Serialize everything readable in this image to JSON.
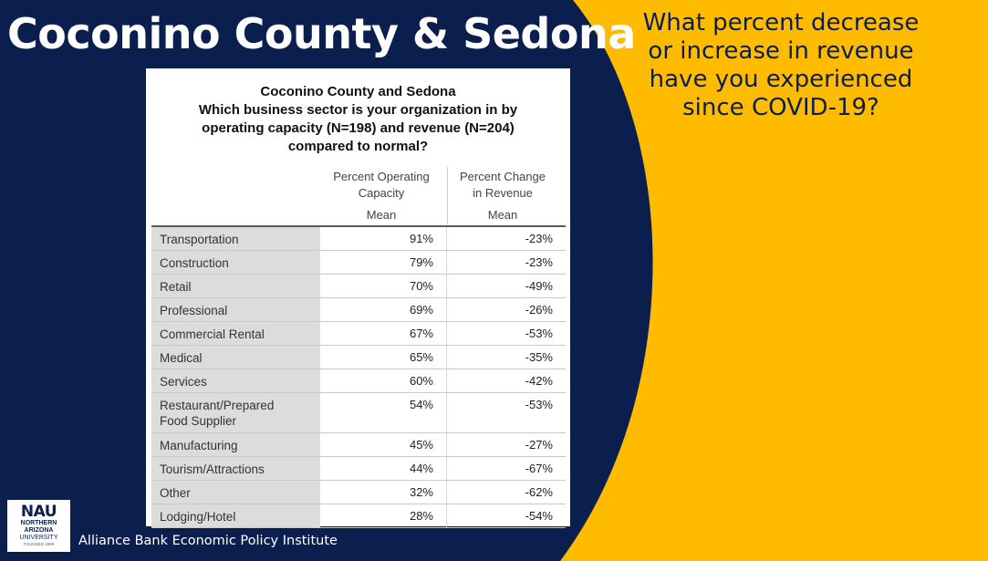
{
  "slide": {
    "title": "Coconino County & Sedona",
    "question": "What percent decrease\nor increase in revenue\nhave you experienced\nsince COVID-19?",
    "institute": "Alliance Bank Economic Policy Institute"
  },
  "logo": {
    "letters": "NAU",
    "line1": "NORTHERN",
    "line2": "ARIZONA",
    "line3": "UNIVERSITY",
    "line4": "FOUNDED 1899"
  },
  "colors": {
    "navy": "#0b1f4f",
    "gold": "#ffbb00"
  },
  "table": {
    "title": [
      "Coconino County and Sedona",
      "Which business sector is your organization in by",
      "operating capacity (N=198) and revenue (N=204)",
      "compared to normal?"
    ],
    "col1_header": "Percent Operating\nCapacity",
    "col2_header": "Percent Change\nin Revenue",
    "col1_sub": "Mean",
    "col2_sub": "Mean",
    "rows": [
      {
        "sector": "Transportation",
        "capacity": "91%",
        "revenue": "-23%"
      },
      {
        "sector": "Construction",
        "capacity": "79%",
        "revenue": "-23%"
      },
      {
        "sector": "Retail",
        "capacity": "70%",
        "revenue": "-49%"
      },
      {
        "sector": "Professional",
        "capacity": "69%",
        "revenue": "-26%"
      },
      {
        "sector": "Commercial Rental",
        "capacity": "67%",
        "revenue": "-53%"
      },
      {
        "sector": "Medical",
        "capacity": "65%",
        "revenue": "-35%"
      },
      {
        "sector": "Services",
        "capacity": "60%",
        "revenue": "-42%"
      },
      {
        "sector": "Restaurant/Prepared\nFood Supplier",
        "capacity": "54%",
        "revenue": "-53%"
      },
      {
        "sector": "Manufacturing",
        "capacity": "45%",
        "revenue": "-27%"
      },
      {
        "sector": "Tourism/Attractions",
        "capacity": "44%",
        "revenue": "-67%"
      },
      {
        "sector": "Other",
        "capacity": "32%",
        "revenue": "-62%"
      },
      {
        "sector": "Lodging/Hotel",
        "capacity": "28%",
        "revenue": "-54%"
      }
    ]
  }
}
